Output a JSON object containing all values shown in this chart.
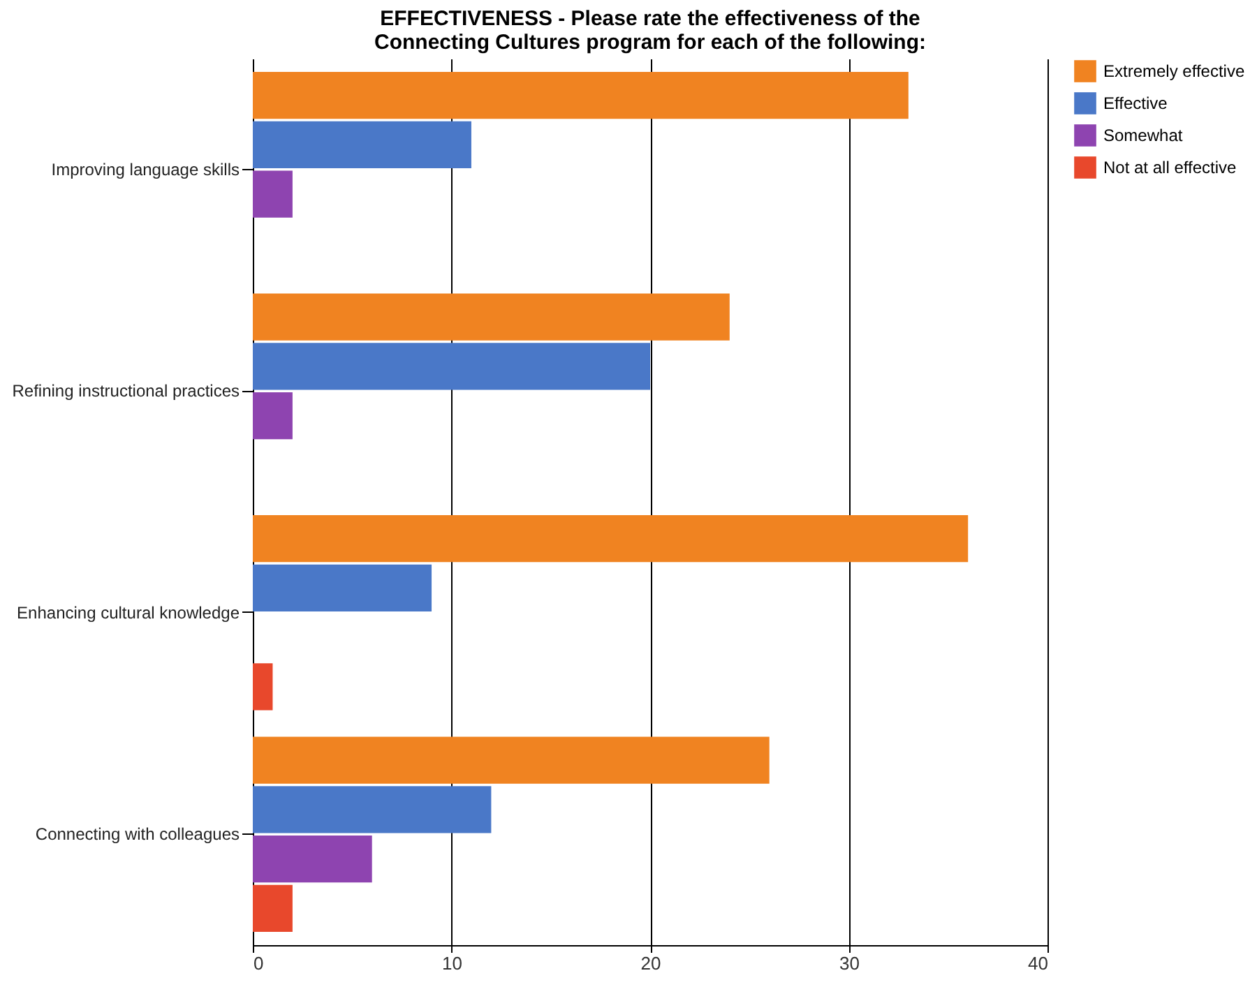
{
  "chart_data": {
    "type": "bar",
    "orientation": "horizontal",
    "title": "EFFECTIVENESS - Please rate the effectiveness of the Connecting Cultures program for each of the following:",
    "categories": [
      "Improving language skills",
      "Refining instructional practices",
      "Enhancing cultural knowledge",
      "Connecting with colleagues"
    ],
    "series": [
      {
        "name": "Extremely effective",
        "color": "#f08321",
        "values": [
          33,
          24,
          36,
          26
        ]
      },
      {
        "name": "Effective",
        "color": "#4a78c8",
        "values": [
          11,
          20,
          9,
          12
        ]
      },
      {
        "name": "Somewhat",
        "color": "#8e44b0",
        "values": [
          2,
          2,
          0,
          6
        ]
      },
      {
        "name": "Not at all effective",
        "color": "#e8482c",
        "values": [
          0,
          0,
          1,
          2
        ]
      }
    ],
    "xlim": [
      0,
      40
    ],
    "xticks": [
      0,
      10,
      20,
      30,
      40
    ],
    "grid": "x",
    "legend": "right"
  }
}
